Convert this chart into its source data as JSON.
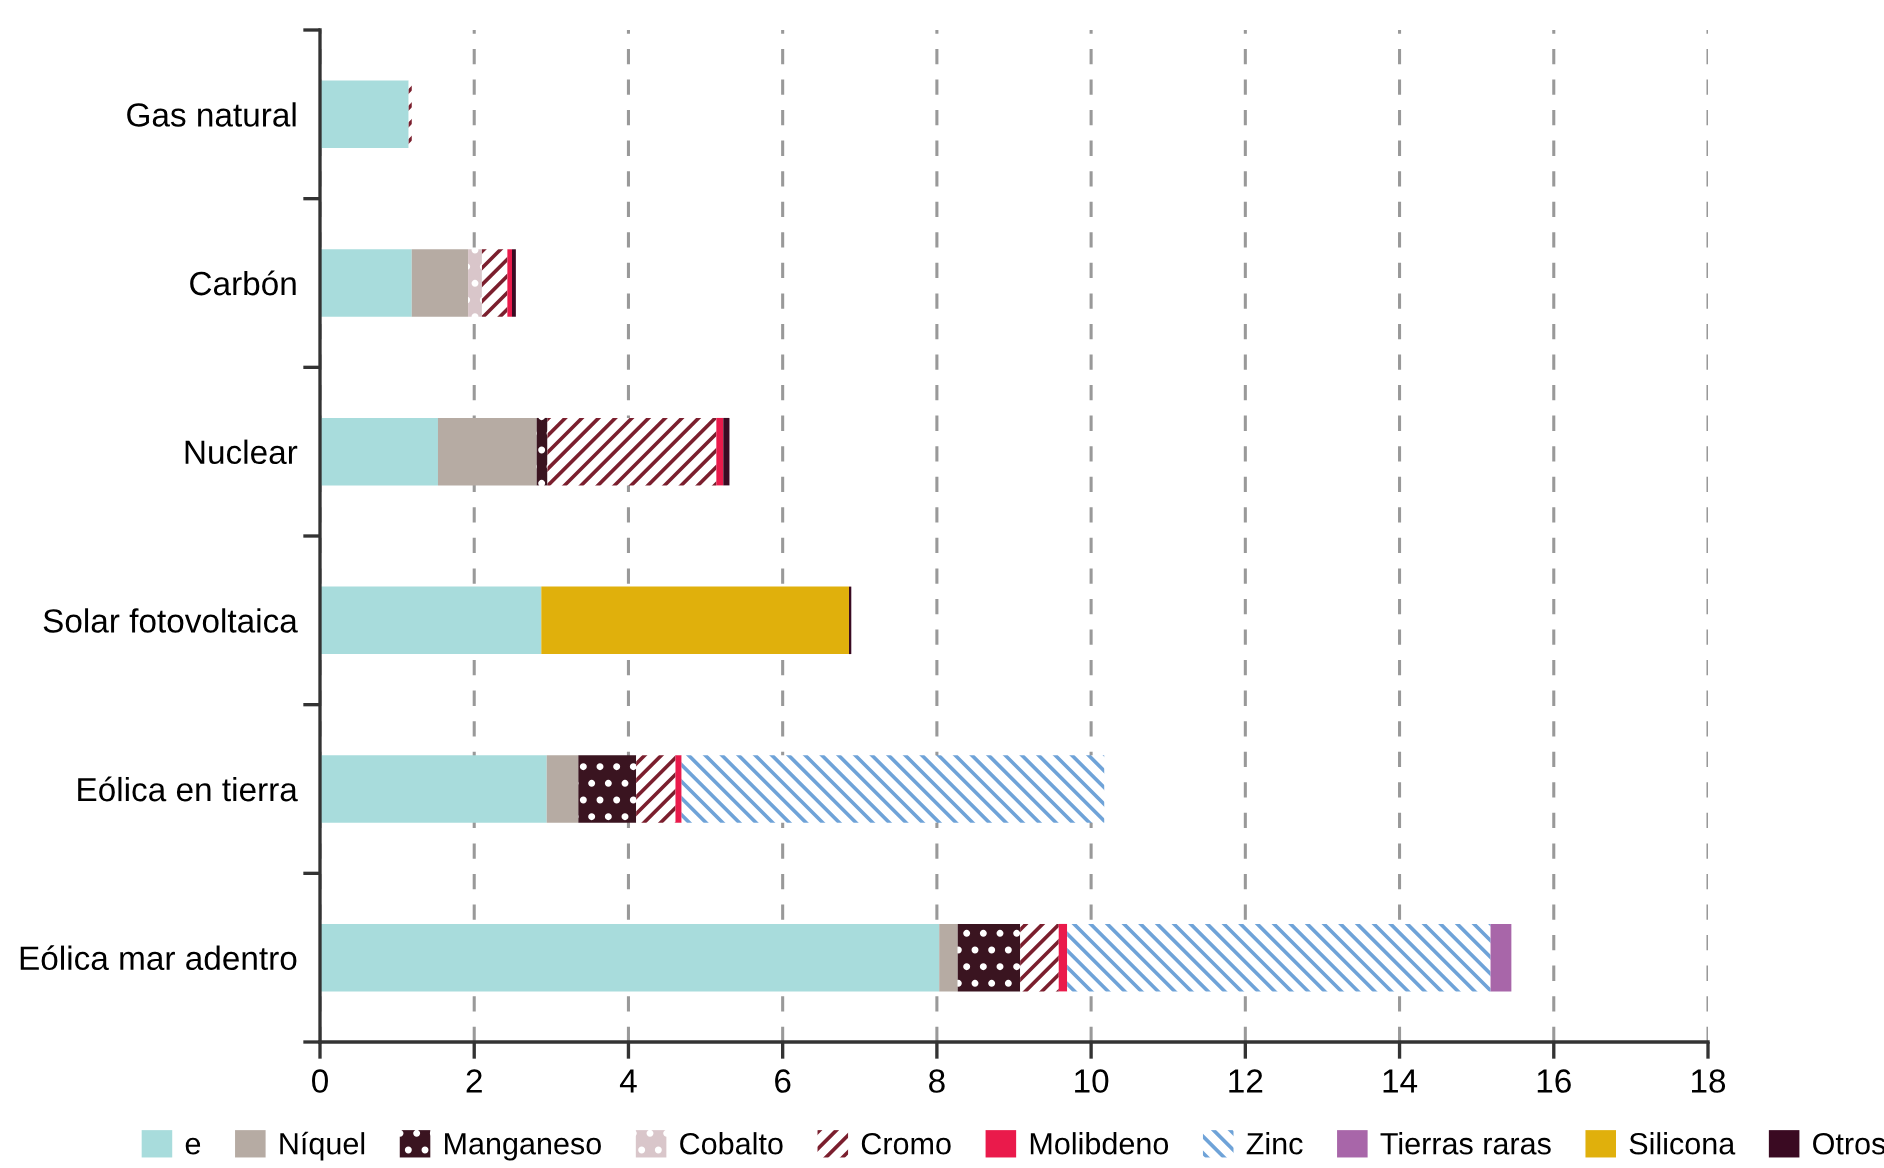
{
  "chart_data": {
    "type": "bar",
    "orientation": "horizontal",
    "stacked": true,
    "categories": [
      "Gas natural",
      "Carbón",
      "Nuclear",
      "Solar fotovoltaica",
      "Eólica en tierra",
      "Eólica mar adentro"
    ],
    "series": [
      {
        "name": "e",
        "color": "#a8dcdc",
        "values": [
          1.15,
          1.19,
          1.53,
          2.87,
          2.94,
          8.03
        ]
      },
      {
        "name": "Níquel",
        "color": "#b6aba3",
        "values": [
          null,
          0.73,
          1.28,
          null,
          0.41,
          0.24
        ]
      },
      {
        "name": "Manganeso",
        "color": "#3a1420",
        "values": [
          null,
          null,
          0.14,
          null,
          0.75,
          0.81
        ]
      },
      {
        "name": "Cobalto",
        "color": "#d9c6ca",
        "values": [
          null,
          0.18,
          null,
          null,
          null,
          null
        ]
      },
      {
        "name": "Cromo",
        "color": "#7b1f2e",
        "values": [
          0.04,
          0.33,
          2.19,
          null,
          0.51,
          0.5
        ]
      },
      {
        "name": "Molibdeno",
        "color": "#ea1a4b",
        "values": [
          null,
          0.06,
          0.09,
          null,
          0.08,
          0.11
        ]
      },
      {
        "name": "Zinc",
        "color": "#6fa3d8",
        "values": [
          null,
          null,
          null,
          null,
          5.48,
          5.49
        ]
      },
      {
        "name": "Tierras raras",
        "color": "#a866a9",
        "values": [
          null,
          null,
          null,
          null,
          null,
          0.27
        ]
      },
      {
        "name": "Silicona",
        "color": "#e0b00c",
        "values": [
          null,
          null,
          null,
          3.99,
          null,
          null
        ]
      },
      {
        "name": "Otros",
        "color": "#3a0a22",
        "values": [
          null,
          0.05,
          0.08,
          0.03,
          null,
          null
        ]
      }
    ],
    "xlim": [
      0,
      18
    ],
    "xticks": [
      0,
      2,
      4,
      6,
      8,
      10,
      12,
      14,
      16,
      18
    ],
    "grid": "x",
    "legend": "bottom"
  }
}
